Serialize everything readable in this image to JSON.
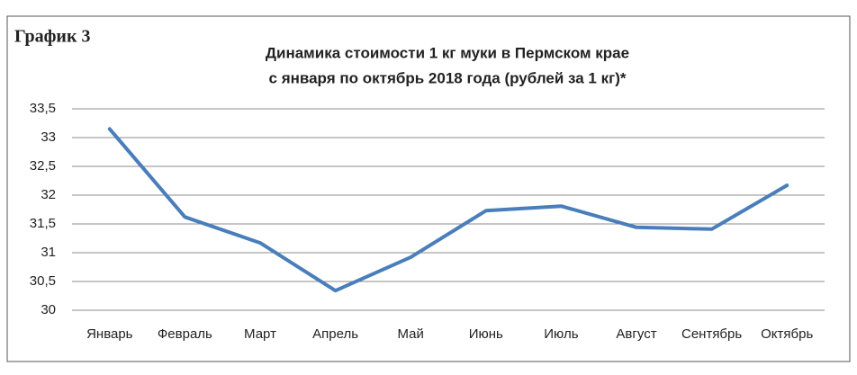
{
  "chart_data": {
    "type": "line",
    "figure_label": "График 3",
    "title": [
      "Динамика стоимости 1 кг муки в Пермском крае",
      "с января по октябрь 2018 года (рублей за 1 кг)*"
    ],
    "categories": [
      "Январь",
      "Февраль",
      "Март",
      "Апрель",
      "Май",
      "Июнь",
      "Июль",
      "Август",
      "Сентябрь",
      "Октябрь"
    ],
    "series": [
      {
        "color": "#4a7ebb",
        "values": [
          33.15,
          31.62,
          31.17,
          30.34,
          30.92,
          31.73,
          31.81,
          31.44,
          31.41,
          32.17
        ]
      }
    ],
    "ylim": [
      30,
      33.5
    ],
    "yticks": [
      30,
      {
        "value": 30.5,
        "label": "30,5"
      },
      31,
      {
        "value": 31.5,
        "label": "31,5"
      },
      32,
      {
        "value": 32.5,
        "label": "32,5"
      },
      33,
      {
        "value": 33.5,
        "label": "33,5"
      }
    ],
    "grid": true
  }
}
